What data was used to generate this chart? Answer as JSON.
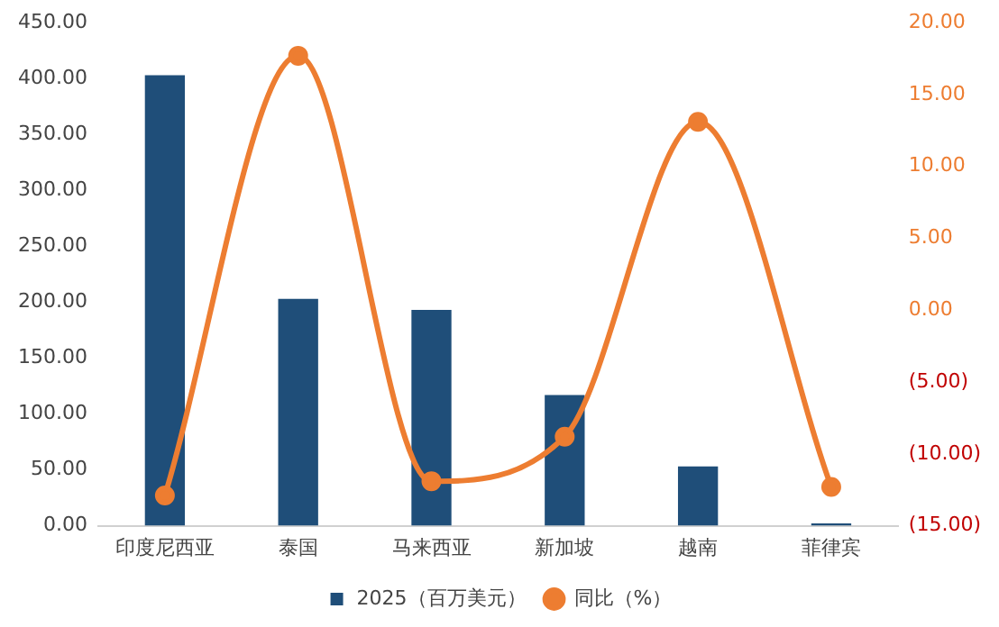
{
  "chart_data": {
    "type": "bar",
    "categories": [
      "印度尼西亚",
      "泰国",
      "马来西亚",
      "新加坡",
      "越南",
      "菲律宾"
    ],
    "series": [
      {
        "name": "2025（百万美元）",
        "color": "#1f4e79",
        "values": [
          403,
          203,
          193,
          117,
          53,
          2
        ]
      },
      {
        "name": "同比（%）",
        "type": "line",
        "axis": "y2",
        "color": "#ed7d31",
        "values": [
          -12.9,
          17.7,
          -11.9,
          -8.8,
          13.1,
          -12.3
        ]
      }
    ],
    "ylim": [
      0,
      450
    ],
    "yticks": [
      {
        "value": 0,
        "label": "0.00"
      },
      {
        "value": 50,
        "label": "50.00"
      },
      {
        "value": 100,
        "label": "100.00"
      },
      {
        "value": 150,
        "label": "150.00"
      },
      {
        "value": 200,
        "label": "200.00"
      },
      {
        "value": 250,
        "label": "250.00"
      },
      {
        "value": 300,
        "label": "300.00"
      },
      {
        "value": 350,
        "label": "350.00"
      },
      {
        "value": 400,
        "label": "400.00"
      },
      {
        "value": 450,
        "label": "450.00"
      }
    ],
    "y2lim": [
      -15,
      20
    ],
    "y2ticks": [
      {
        "value": -15,
        "label": "(15.00)"
      },
      {
        "value": -10,
        "label": "(10.00)"
      },
      {
        "value": -5,
        "label": "(5.00)"
      },
      {
        "value": 0,
        "label": "0.00"
      },
      {
        "value": 5,
        "label": "5.00"
      },
      {
        "value": 10,
        "label": "10.00"
      },
      {
        "value": 15,
        "label": "15.00"
      },
      {
        "value": 20,
        "label": "20.00"
      }
    ],
    "grid": false,
    "legend": "bottom",
    "marker": "circle",
    "line_style": "solid"
  }
}
